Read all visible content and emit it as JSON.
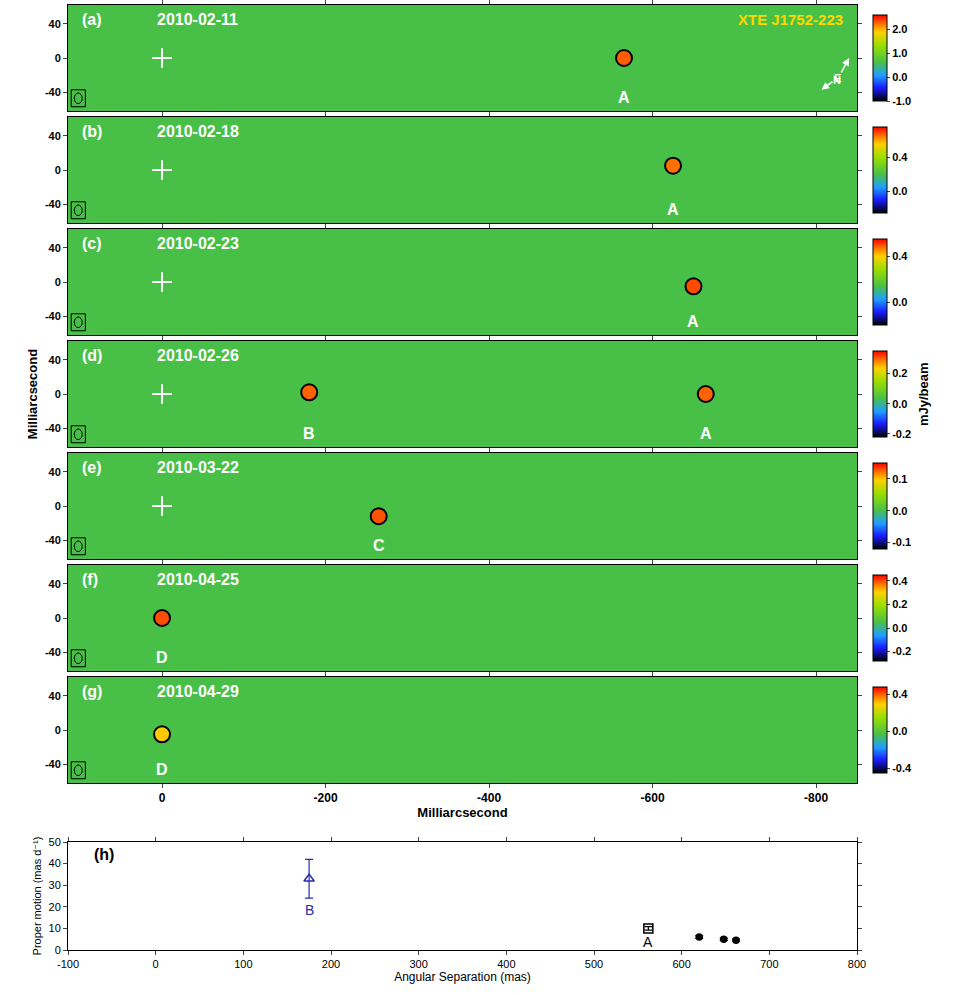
{
  "chart_data": [
    {
      "type": "image_map",
      "xlabel": "Milliarcsecond",
      "ylabel": "Milliarcsecond",
      "xlim": [
        115,
        -850
      ],
      "xticks": [
        0,
        -200,
        -400,
        -600,
        -800
      ],
      "ylim": [
        -62,
        62
      ],
      "yticks": [
        -40,
        0,
        40
      ],
      "colorbar_title": "mJy/beam",
      "source_name": "XTE J1752-223",
      "compass": [
        "N",
        "E"
      ],
      "grid": false,
      "panels": [
        {
          "label": "(a)",
          "date": "2010-02-11",
          "reference": [
            0,
            0
          ],
          "color_range": [
            -1.0,
            2.6
          ],
          "color_ticks": [
            {
              "value": -1,
              "label": "-1.0"
            },
            {
              "value": 0,
              "label": "0.0"
            },
            {
              "value": 1,
              "label": "1.0"
            },
            {
              "value": 2,
              "label": "2.0"
            }
          ],
          "sources": [
            {
              "label": "A",
              "x": -565,
              "y": 0,
              "peak": 2.3
            }
          ]
        },
        {
          "label": "(b)",
          "date": "2010-02-18",
          "reference": [
            0,
            0
          ],
          "color_range": [
            -0.25,
            0.75
          ],
          "color_ticks": [
            {
              "value": 0,
              "label": "0.0"
            },
            0.4
          ],
          "sources": [
            {
              "label": "A",
              "x": -625,
              "y": 5,
              "peak": 0.65
            }
          ]
        },
        {
          "label": "(c)",
          "date": "2010-02-23",
          "reference": [
            0,
            0
          ],
          "color_range": [
            -0.2,
            0.55
          ],
          "color_ticks": [
            {
              "value": 0,
              "label": "0.0"
            },
            0.4
          ],
          "sources": [
            {
              "label": "A",
              "x": -650,
              "y": -5,
              "peak": 0.5
            }
          ]
        },
        {
          "label": "(d)",
          "date": "2010-02-26",
          "reference": [
            0,
            0
          ],
          "color_range": [
            -0.22,
            0.35
          ],
          "color_ticks": [
            -0.2,
            {
              "value": 0,
              "label": "0.0"
            },
            0.2
          ],
          "sources": [
            {
              "label": "B",
              "x": -180,
              "y": 2,
              "peak": 0.3
            },
            {
              "label": "A",
              "x": -665,
              "y": 0,
              "peak": 0.3
            }
          ]
        },
        {
          "label": "(e)",
          "date": "2010-03-22",
          "reference": [
            0,
            0
          ],
          "color_range": [
            -0.12,
            0.15
          ],
          "color_ticks": [
            -0.1,
            {
              "value": 0,
              "label": "0.0"
            },
            0.1
          ],
          "sources": [
            {
              "label": "C",
              "x": -265,
              "y": -12,
              "peak": 0.13
            }
          ]
        },
        {
          "label": "(f)",
          "date": "2010-04-25",
          "color_range": [
            -0.28,
            0.45
          ],
          "color_ticks": [
            -0.2,
            {
              "value": 0,
              "label": "0.0"
            },
            0.2,
            0.4
          ],
          "sources": [
            {
              "label": "D",
              "x": 0,
              "y": 0,
              "peak": 0.4
            }
          ]
        },
        {
          "label": "(g)",
          "date": "2010-04-29",
          "color_range": [
            -0.45,
            0.48
          ],
          "color_ticks": [
            -0.4,
            {
              "value": 0,
              "label": "0.0"
            },
            0.4
          ],
          "sources": [
            {
              "label": "D",
              "x": 0,
              "y": -5,
              "peak": 0.3
            }
          ]
        }
      ]
    },
    {
      "type": "scatter",
      "label": "(h)",
      "xlabel": "Angular Separation (mas)",
      "ylabel": "Proper motion (mas d⁻¹)",
      "xlim": [
        -100,
        800
      ],
      "xticks": [
        -100,
        0,
        100,
        200,
        300,
        400,
        500,
        600,
        700,
        800
      ],
      "ylim": [
        0,
        50
      ],
      "yticks": [
        0,
        10,
        20,
        30,
        40,
        50
      ],
      "grid": false,
      "series": [
        {
          "label": "B",
          "color": "#2a2aa8",
          "marker": "triangle-up-open",
          "x": [
            175
          ],
          "values": [
            33
          ],
          "error": [
            9
          ]
        },
        {
          "label": "A",
          "color": "#000000",
          "marker": "square-open",
          "x": [
            562
          ],
          "values": [
            10
          ],
          "error": [
            0.8
          ]
        },
        {
          "color": "#000000",
          "marker": "circle",
          "x": [
            620,
            648,
            662
          ],
          "values": [
            6,
            5,
            4.5
          ],
          "error": [
            0.6,
            0.5,
            0.5
          ]
        }
      ]
    }
  ]
}
